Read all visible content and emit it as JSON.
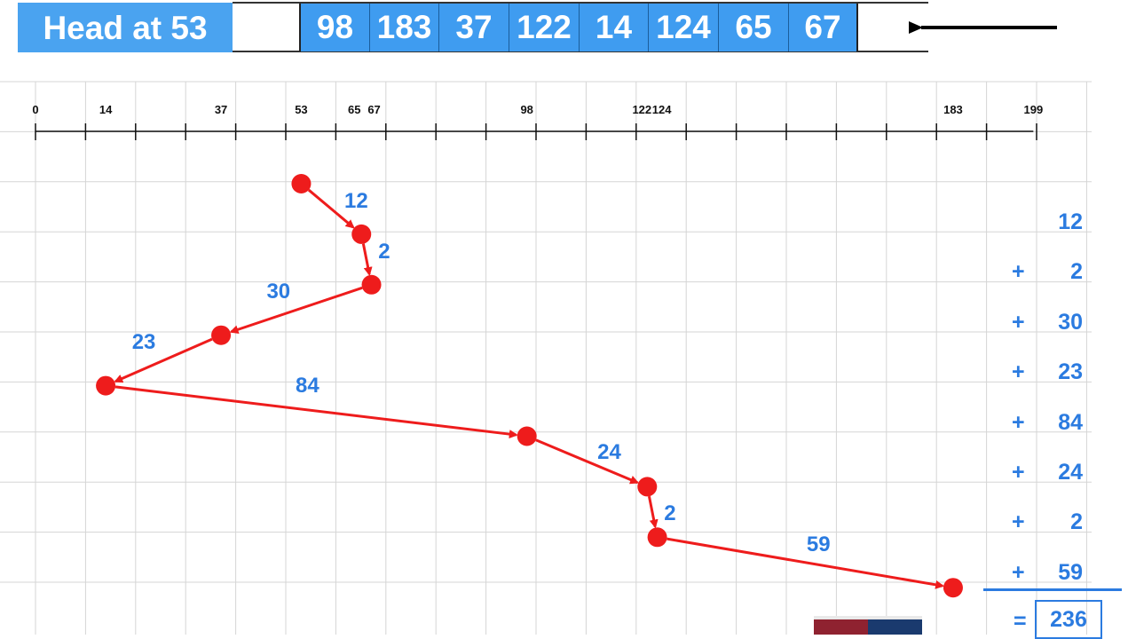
{
  "head_label": "Head at 53",
  "queue": [
    98,
    183,
    37,
    122,
    14,
    124,
    65,
    67
  ],
  "axis": {
    "min": 0,
    "max": 199,
    "tick_labels": [
      0,
      14,
      37,
      53,
      65,
      67,
      98,
      122,
      124,
      183,
      199
    ]
  },
  "path": [
    53,
    65,
    67,
    37,
    14,
    98,
    122,
    124,
    183
  ],
  "segment_distances": [
    "12",
    "2",
    "30",
    "23",
    "84",
    "24",
    "2",
    "59"
  ],
  "sum_lines": [
    {
      "op": "",
      "value": "12"
    },
    {
      "op": "+",
      "value": "2"
    },
    {
      "op": "+",
      "value": "30"
    },
    {
      "op": "+",
      "value": "23"
    },
    {
      "op": "+",
      "value": "84"
    },
    {
      "op": "+",
      "value": "24"
    },
    {
      "op": "+",
      "value": "2"
    },
    {
      "op": "+",
      "value": "59"
    }
  ],
  "total_eq": "=",
  "total": "236",
  "colors": {
    "accent_blue": "#3f9cf0",
    "text_blue": "#2b7be0",
    "path_red": "#ee1c1c",
    "grid": "#d5d5d5"
  },
  "arrow_icon": "left-arrow-icon"
}
